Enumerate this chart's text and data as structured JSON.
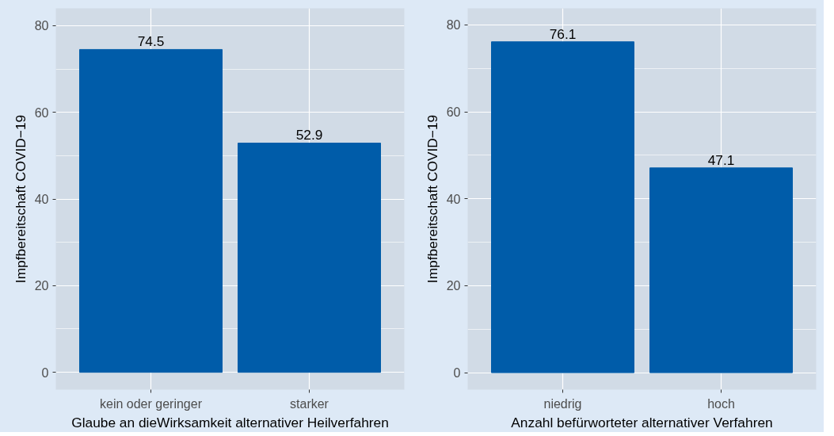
{
  "chart_data": [
    {
      "type": "bar",
      "categories": [
        "kein oder geringer",
        "starker"
      ],
      "values": [
        74.5,
        52.9
      ],
      "color": "#005ca9",
      "data_labels": true,
      "xlabel": "Glaube an dieWirksamkeit alternativer Heilverfahren",
      "ylabel": "Impfbereitschaft COVID−19",
      "ylim": [
        -4,
        84
      ],
      "yticks": [
        0,
        20,
        40,
        60,
        80
      ],
      "grid": true
    },
    {
      "type": "bar",
      "categories": [
        "niedrig",
        "hoch"
      ],
      "values": [
        76.1,
        47.1
      ],
      "color": "#005ca9",
      "data_labels": true,
      "xlabel": "Anzahl befürworteter alternativer Verfahren",
      "ylabel": "Impfbereitschaft COVID−19",
      "ylim": [
        -3.9,
        83.8
      ],
      "yticks": [
        0,
        20,
        40,
        60,
        80
      ],
      "grid": true
    }
  ]
}
